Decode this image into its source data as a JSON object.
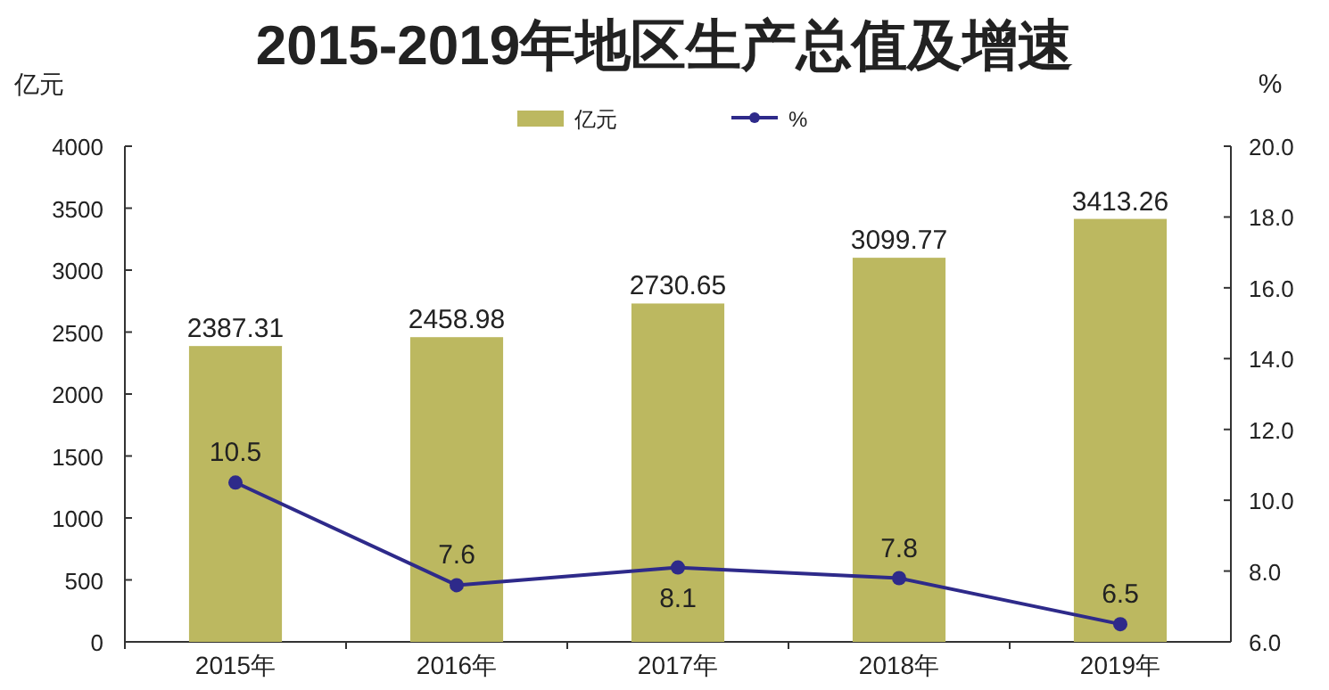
{
  "chart_data": {
    "type": "bar",
    "title": "2015-2019年地区生产总值及增速",
    "ylabel": "亿元",
    "y2label": "%",
    "categories": [
      "2015年",
      "2016年",
      "2017年",
      "2018年",
      "2019年"
    ],
    "series": [
      {
        "name": "亿元",
        "color": "#bcb860",
        "values": [
          2387.31,
          2458.98,
          2730.65,
          3099.77,
          3413.26
        ]
      },
      {
        "name": "%",
        "type": "line",
        "axis": "y2",
        "color": "#2e2a8a",
        "values": [
          10.5,
          7.6,
          8.1,
          7.8,
          6.5
        ]
      }
    ],
    "ylim": [
      0,
      4000
    ],
    "yticks": [
      0,
      500,
      1000,
      1500,
      2000,
      2500,
      3000,
      3500,
      4000
    ],
    "y2lim": [
      6,
      20
    ],
    "y2ticks": [
      {
        "value": 6,
        "label": "6.0"
      },
      {
        "value": 8,
        "label": "8.0"
      },
      {
        "value": 10,
        "label": "10.0"
      },
      {
        "value": 12,
        "label": "12.0"
      },
      {
        "value": 14,
        "label": "14.0"
      },
      {
        "value": 16,
        "label": "16.0"
      },
      {
        "value": 18,
        "label": "18.0"
      },
      {
        "value": 20,
        "label": "20.0"
      }
    ],
    "data_labels": true,
    "legend": "top",
    "marker": "circle",
    "line_style": "solid",
    "grid": false
  }
}
